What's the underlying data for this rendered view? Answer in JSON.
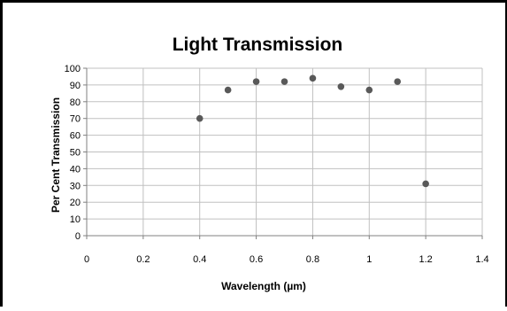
{
  "chart_data": {
    "type": "scatter",
    "title": "Light Transmission",
    "xlabel": "Wavelength (µm)",
    "ylabel": "Per Cent Transmission",
    "xlim": [
      0,
      1.4
    ],
    "ylim": [
      0,
      100
    ],
    "xticks": [
      0,
      0.2,
      0.4,
      0.6,
      0.8,
      1,
      1.2,
      1.4
    ],
    "yticks": [
      0,
      10,
      20,
      30,
      40,
      50,
      60,
      70,
      80,
      90,
      100
    ],
    "xtick_labels": [
      "0",
      "0.2",
      "0.4",
      "0.6",
      "0.8",
      "1",
      "1.2",
      "1.4"
    ],
    "ytick_labels": [
      "0",
      "10",
      "20",
      "30",
      "40",
      "50",
      "60",
      "70",
      "80",
      "90",
      "100"
    ],
    "grid": true,
    "legend": false,
    "series": [
      {
        "x": [
          0.4,
          0.5,
          0.6,
          0.7,
          0.8,
          0.9,
          1.0,
          1.1,
          1.2
        ],
        "y": [
          70,
          87,
          92,
          92,
          94,
          89,
          87,
          92,
          31
        ]
      }
    ],
    "marker_color": "#595959",
    "grid_color": "#c0c0c0"
  }
}
